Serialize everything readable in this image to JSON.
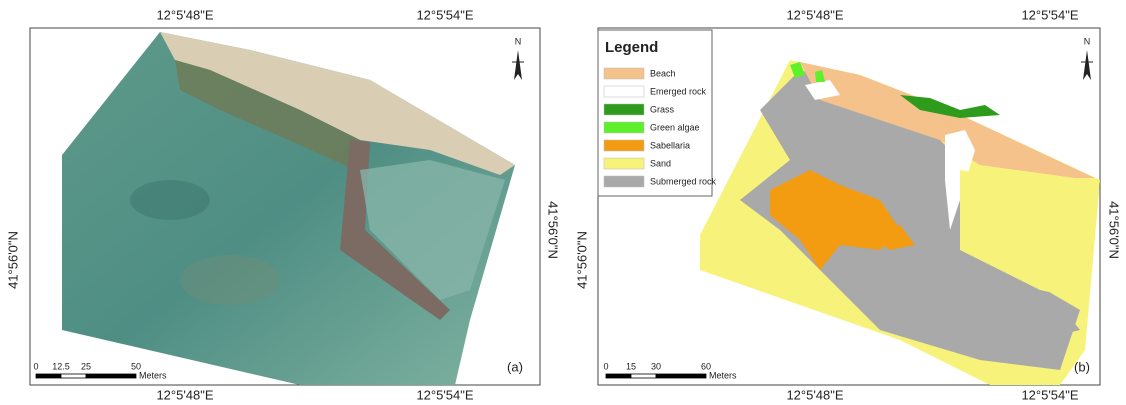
{
  "panels": [
    {
      "label": "(a)",
      "top_labels": [
        "12°5'48\"E",
        "12°5'54\"E"
      ],
      "bottom_labels": [
        "12°5'48\"E",
        "12°5'54\"E"
      ],
      "left_label": "41°56'0\"N",
      "right_label": "41°56'0\"N",
      "north": "N",
      "scale": {
        "ticks": [
          "0",
          "12.5",
          "25",
          "50"
        ],
        "unit": "Meters"
      }
    },
    {
      "label": "(b)",
      "top_labels": [
        "12°5'48\"E",
        "12°5'54\"E"
      ],
      "bottom_labels": [
        "12°5'48\"E",
        "12°5'54\"E"
      ],
      "left_label": "41°56'0\"N",
      "right_label": "41°56'0\"N",
      "north": "N",
      "scale": {
        "ticks": [
          "0",
          "15",
          "30",
          "60"
        ],
        "unit": "Meters"
      },
      "legend": {
        "title": "Legend",
        "items": [
          {
            "name": "Beach",
            "color": "#f6c28b"
          },
          {
            "name": "Emerged rock",
            "color": "#ffffff"
          },
          {
            "name": "Grass",
            "color": "#2e9b1c"
          },
          {
            "name": "Green algae",
            "color": "#5ef02a"
          },
          {
            "name": "Sabellaria",
            "color": "#f39c12"
          },
          {
            "name": "Sand",
            "color": "#f7f27a"
          },
          {
            "name": "Submerged rock",
            "color": "#a9a9a9"
          }
        ]
      }
    }
  ]
}
